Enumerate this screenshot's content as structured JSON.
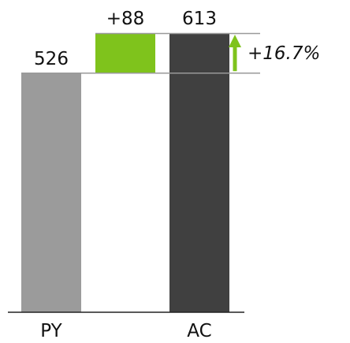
{
  "chart_data": {
    "type": "bar",
    "categories": [
      "PY",
      "AC"
    ],
    "values": [
      526,
      613
    ],
    "value_labels": [
      "526",
      "613"
    ],
    "delta": {
      "value": 88,
      "label": "+88",
      "color": "#7fc31c"
    },
    "percent_change": {
      "value": 16.7,
      "label": "+16.7%",
      "arrow_color": "#7fc31c"
    },
    "colors": {
      "PY": "#9b9b9b",
      "AC": "#404040",
      "connector": "#999999",
      "axis": "#222222"
    },
    "ylim": [
      0,
      613
    ],
    "grid": false,
    "legend": "none"
  }
}
